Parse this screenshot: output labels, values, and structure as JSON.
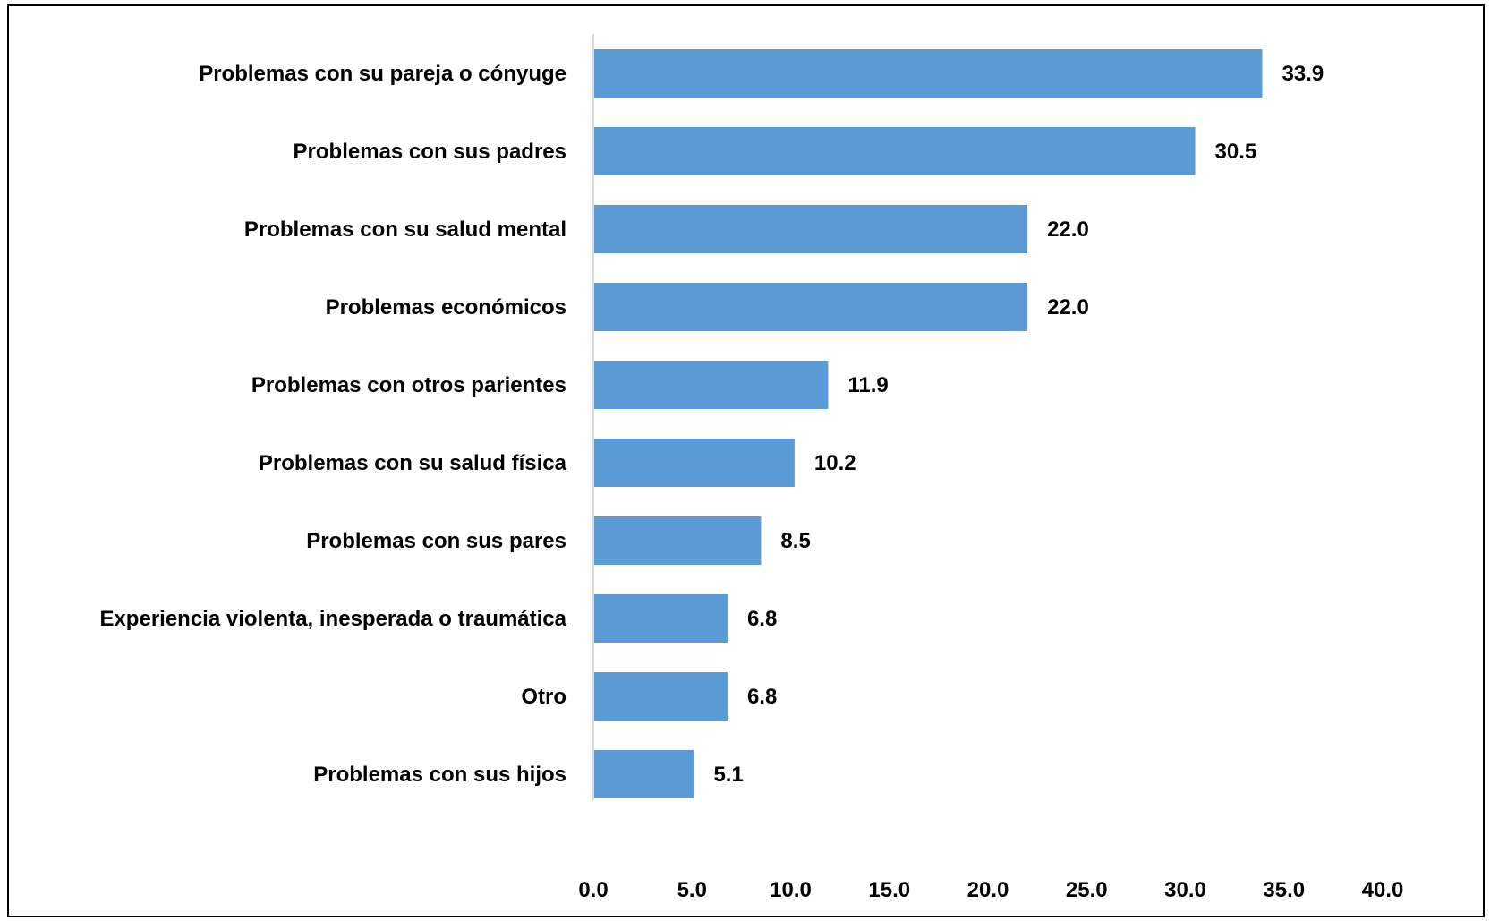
{
  "chart_data": {
    "type": "bar",
    "orientation": "horizontal",
    "categories": [
      "Problemas con su pareja o cónyuge",
      "Problemas con sus padres",
      "Problemas con su salud mental",
      "Problemas económicos",
      "Problemas con otros parientes",
      "Problemas con su salud física",
      "Problemas con sus pares",
      "Experiencia violenta, inesperada o traumática",
      "Otro",
      "Problemas con sus hijos"
    ],
    "values": [
      33.9,
      30.5,
      22.0,
      22.0,
      11.9,
      10.2,
      8.5,
      6.8,
      6.8,
      5.1
    ],
    "value_labels": [
      "33.9",
      "30.5",
      "22.0",
      "22.0",
      "11.9",
      "10.2",
      "8.5",
      "6.8",
      "6.8",
      "5.1"
    ],
    "xlim": [
      0,
      40
    ],
    "xticks": [
      "0.0",
      "5.0",
      "10.0",
      "15.0",
      "20.0",
      "25.0",
      "30.0",
      "35.0",
      "40.0"
    ],
    "bar_color": "#5b9bd5",
    "axis_color": "#d9d9d9",
    "grid": false,
    "legend": "none",
    "title": "",
    "xlabel": "",
    "ylabel": ""
  }
}
